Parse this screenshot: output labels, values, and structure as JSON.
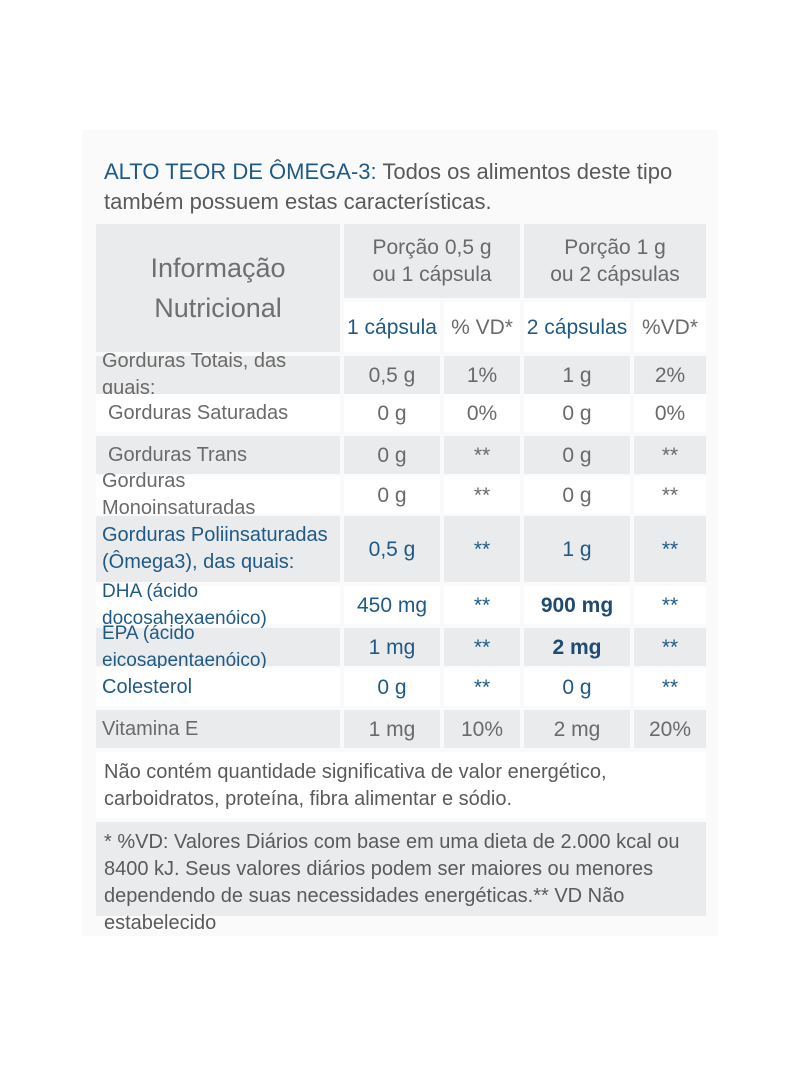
{
  "intro": {
    "highlight": "ALTO TEOR DE ÔMEGA-3:",
    "rest": " Todos os alimentos deste tipo também possuem estas características."
  },
  "table": {
    "title_line1": "Informação",
    "title_line2": "Nutricional",
    "portion1_line1": "Porção 0,5 g",
    "portion1_line2": "ou 1 cápsula",
    "portion2_line1": "Porção  1 g",
    "portion2_line2": "ou 2 cápsulas",
    "col_headers": [
      "1 cápsula",
      "% VD*",
      "2 cápsulas",
      "%VD*"
    ],
    "rows": [
      {
        "label": "Gorduras Totais, das quais:",
        "v1": "0,5 g",
        "vd1": "1%",
        "v2": "1 g",
        "vd2": "2%"
      },
      {
        "label": "Gorduras Saturadas",
        "v1": "0 g",
        "vd1": "0%",
        "v2": "0 g",
        "vd2": "0%"
      },
      {
        "label": "Gorduras Trans",
        "v1": "0 g",
        "vd1": "**",
        "v2": "0 g",
        "vd2": "**"
      },
      {
        "label": "Gorduras Monoinsaturadas",
        "v1": "0 g",
        "vd1": "**",
        "v2": "0 g",
        "vd2": "**"
      },
      {
        "label_line1": "Gorduras Poliinsaturadas",
        "label_line2": "(Ômega3), das quais:",
        "v1": "0,5 g",
        "vd1": "**",
        "v2": "1 g",
        "vd2": "**"
      },
      {
        "label": "DHA (ácido docosahexaenóico)",
        "v1": "450 mg",
        "vd1": "**",
        "v2": "900 mg",
        "vd2": "**"
      },
      {
        "label": "EPA (ácido eicosapentaenóico)",
        "v1": "1 mg",
        "vd1": "**",
        "v2": "2 mg",
        "vd2": "**"
      },
      {
        "label": "Colesterol",
        "v1": "0 g",
        "vd1": "**",
        "v2": "0 g",
        "vd2": "**"
      },
      {
        "label": "Vitamina E",
        "v1": "1 mg",
        "vd1": "10%",
        "v2": "2 mg",
        "vd2": "20%"
      }
    ]
  },
  "footnote1": "Não contém quantidade significativa de valor energético, carboidratos, proteína, fibra alimentar e sódio.",
  "footnote2": "* %VD: Valores Diários com base em uma dieta de 2.000 kcal ou 8400 kJ. Seus valores diários podem ser maiores ou menores dependendo de suas necessidades energéticas.** VD Não estabelecido",
  "colors": {
    "accent": "#1f5a86",
    "cell_bg": "#eaebec",
    "text": "#5a5a5a"
  }
}
